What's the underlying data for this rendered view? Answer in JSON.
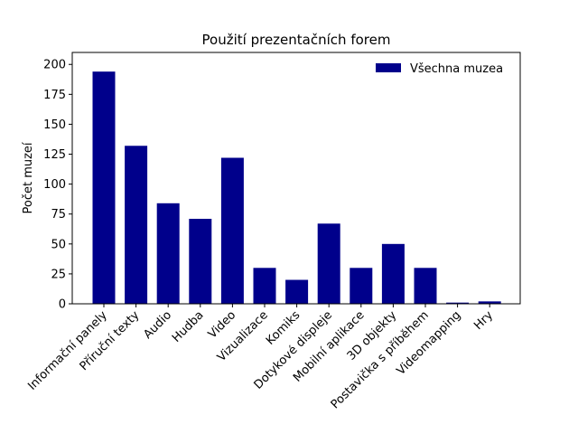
{
  "chart_data": {
    "type": "bar",
    "title": "Použití prezentačních forem",
    "xlabel": "",
    "ylabel": "Počet muzeí",
    "ylim": [
      0,
      210
    ],
    "yticks": [
      0,
      25,
      50,
      75,
      100,
      125,
      150,
      175,
      200
    ],
    "categories": [
      "Informační panely",
      "Příruční texty",
      "Audio",
      "Hudba",
      "Video",
      "Vizualizace",
      "Komiks",
      "Dotykové displeje",
      "Mobilní aplikace",
      "3D objekty",
      "Postavička s příběhem",
      "Videomapping",
      "Hry"
    ],
    "series": [
      {
        "name": "Všechna muzea",
        "color": "#00008b",
        "values": [
          194,
          132,
          84,
          71,
          122,
          30,
          20,
          67,
          30,
          50,
          30,
          1,
          2
        ]
      }
    ],
    "legend": "top-right",
    "grid": false
  }
}
